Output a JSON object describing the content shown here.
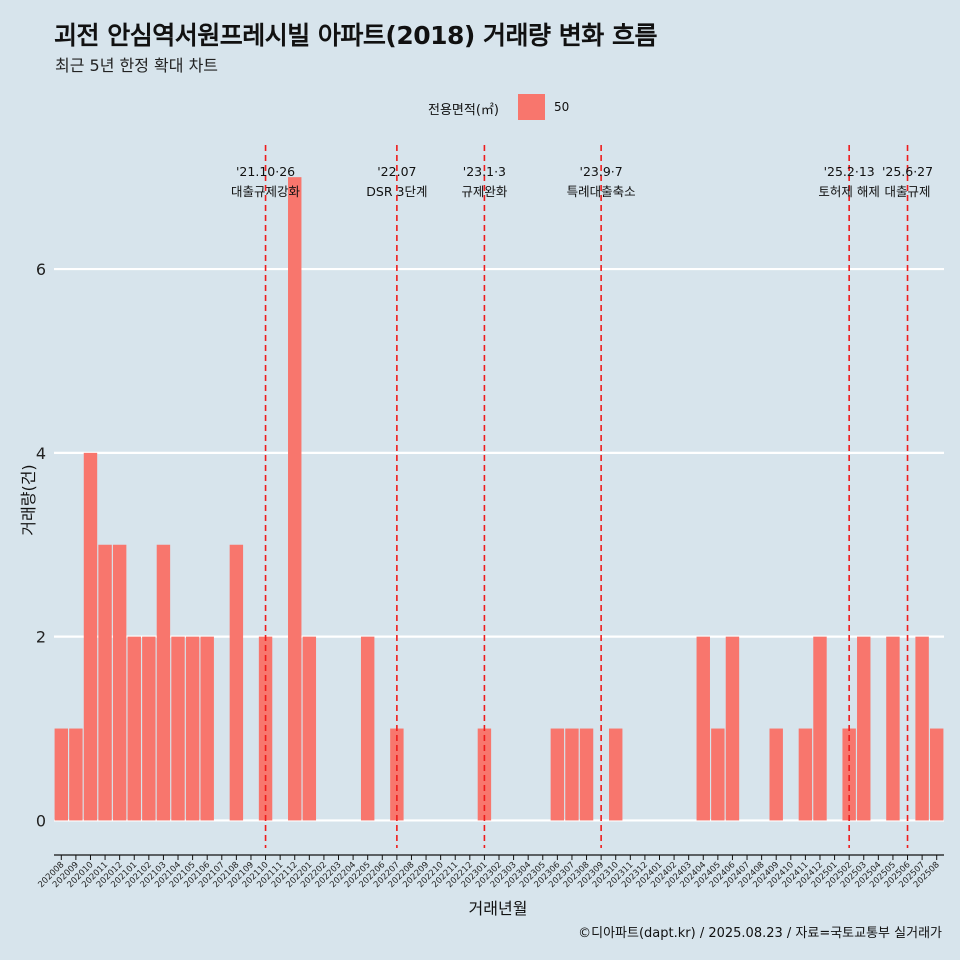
{
  "title": "괴전 안심역서원프레시빌 아파트(2018) 거래량 변화 흐름",
  "subtitle": "최근 5년 한정 확대 차트",
  "caption": "©디아파트(dapt.kr) / 2025.08.23 / 자료=국토교통부 실거래가",
  "legend": {
    "title": "전용면적(㎡)",
    "label": "50",
    "color": "#f8766d"
  },
  "chart_data": {
    "type": "bar",
    "xlabel": "거래년월",
    "ylabel": "거래량(건)",
    "ylim": [
      -0.3,
      7.35
    ],
    "yticks": [
      0,
      2,
      4,
      6
    ],
    "bar_color": "#f8766d",
    "categories": [
      "202008",
      "202009",
      "202010",
      "202011",
      "202012",
      "202101",
      "202102",
      "202103",
      "202104",
      "202105",
      "202106",
      "202107",
      "202108",
      "202109",
      "202110",
      "202111",
      "202112",
      "202201",
      "202202",
      "202203",
      "202204",
      "202205",
      "202206",
      "202207",
      "202208",
      "202209",
      "202210",
      "202211",
      "202212",
      "202301",
      "202302",
      "202303",
      "202304",
      "202305",
      "202306",
      "202307",
      "202308",
      "202309",
      "202310",
      "202311",
      "202312",
      "202401",
      "202402",
      "202403",
      "202404",
      "202405",
      "202406",
      "202407",
      "202408",
      "202409",
      "202410",
      "202411",
      "202412",
      "202501",
      "202502",
      "202503",
      "202504",
      "202505",
      "202506",
      "202507",
      "202508"
    ],
    "series": [
      {
        "name": "50",
        "values": [
          1,
          1,
          4,
          3,
          3,
          2,
          2,
          3,
          2,
          2,
          2,
          0,
          3,
          0,
          2,
          0,
          7,
          2,
          0,
          0,
          0,
          2,
          0,
          1,
          0,
          0,
          0,
          0,
          0,
          1,
          0,
          0,
          0,
          0,
          1,
          1,
          1,
          0,
          1,
          0,
          0,
          0,
          0,
          0,
          2,
          1,
          2,
          0,
          0,
          1,
          0,
          1,
          2,
          0,
          1,
          2,
          0,
          2,
          0,
          2,
          1
        ]
      }
    ],
    "annotations": [
      {
        "position": 14.0,
        "date": "'21.10·26",
        "label": "대출규제강화"
      },
      {
        "position": 23.0,
        "date": "'22.07",
        "label": "DSR 3단계"
      },
      {
        "position": 29.0,
        "date": "'23.1·3",
        "label": "규제완화"
      },
      {
        "position": 37.0,
        "date": "'23.9·7",
        "label": "특례대출축소"
      },
      {
        "position": 54.0,
        "date": "'25.2·13",
        "label": "토허제 해제"
      },
      {
        "position": 58.0,
        "date": "'25.6·27",
        "label": "대출규제"
      }
    ]
  }
}
